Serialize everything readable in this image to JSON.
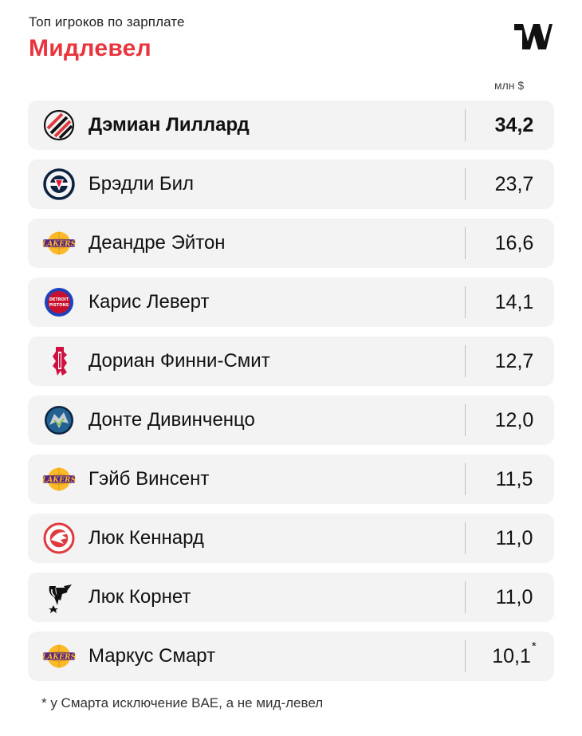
{
  "header": {
    "subtitle": "Топ игроков по зарплате",
    "title": "Мидлевел",
    "accent_color": "#e8353d"
  },
  "unit_label": "млн $",
  "players": [
    {
      "name": "Дэмиан Лиллард",
      "value": "34,2",
      "team_icon": "trail-blazers-logo",
      "highlight": true
    },
    {
      "name": "Брэдли Бил",
      "value": "23,7",
      "team_icon": "wizards-logo"
    },
    {
      "name": "Деандре Эйтон",
      "value": "16,6",
      "team_icon": "lakers-logo"
    },
    {
      "name": "Карис Леверт",
      "value": "14,1",
      "team_icon": "pistons-logo"
    },
    {
      "name": "Дориан Финни-Смит",
      "value": "12,7",
      "team_icon": "rockets-logo"
    },
    {
      "name": "Донте Дивинченцо",
      "value": "12,0",
      "team_icon": "timberwolves-logo"
    },
    {
      "name": "Гэйб Винсент",
      "value": "11,5",
      "team_icon": "lakers-logo"
    },
    {
      "name": "Люк Кеннард",
      "value": "11,0",
      "team_icon": "hawks-logo"
    },
    {
      "name": "Люк Корнет",
      "value": "11,0",
      "team_icon": "spurs-logo"
    },
    {
      "name": "Маркус Смарт",
      "value": "10,1",
      "value_mark": "*",
      "team_icon": "lakers-logo"
    }
  ],
  "footnote": "* у Смарта исключение BAE, а не мид-левел"
}
